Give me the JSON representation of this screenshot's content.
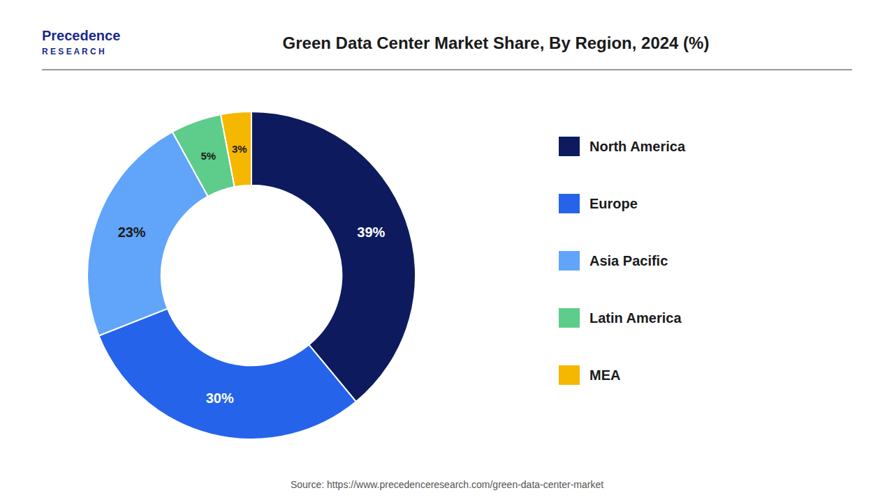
{
  "chart_data": {
    "type": "donut",
    "title": "Green Data Center Market Share, By Region, 2024 (%)",
    "categories": [
      "North America",
      "Europe",
      "Asia Pacific",
      "Latin America",
      "MEA"
    ],
    "values": [
      39,
      30,
      23,
      5,
      3
    ],
    "value_labels": [
      "39%",
      "30%",
      "23%",
      "5%",
      "3%"
    ],
    "colors": [
      "#0d1b5e",
      "#2563eb",
      "#60a5fa",
      "#5ecc8a",
      "#f5b700"
    ],
    "data_labels": true,
    "legend": "right",
    "annotations": [
      "Precedence",
      "R E S E A R C H",
      "Source: https://www.precedenceresearch.com/green-data-center-market"
    ]
  }
}
